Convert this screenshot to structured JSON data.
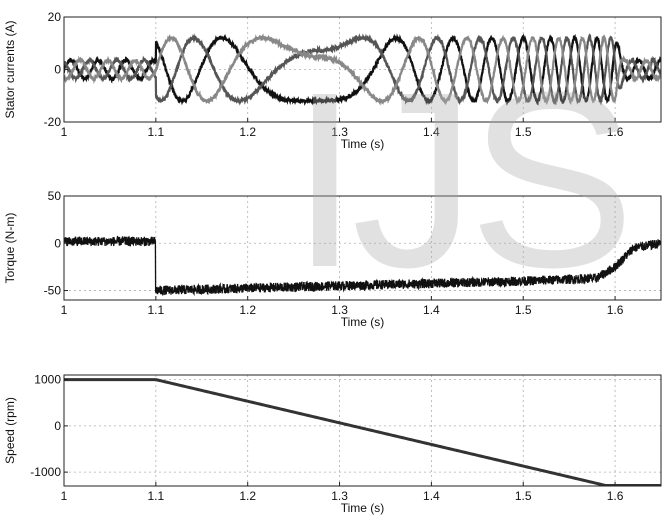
{
  "watermark": "IJS",
  "chart_data": [
    {
      "type": "line",
      "title": "",
      "xlabel": "Time (s)",
      "ylabel": "Stator currents (A)",
      "xlim": [
        1.0,
        1.65
      ],
      "ylim": [
        -20,
        20
      ],
      "xticks": [
        "1",
        "1.1",
        "1.2",
        "1.3",
        "1.4",
        "1.5",
        "1.6"
      ],
      "xtick_values": [
        1.0,
        1.1,
        1.2,
        1.3,
        1.4,
        1.5,
        1.6
      ],
      "yticks": [
        "-20",
        "0",
        "20"
      ],
      "ytick_values": [
        -20,
        0,
        20
      ],
      "grid": true,
      "series": [
        {
          "phase": 0,
          "color": "#111111"
        },
        {
          "phase": 2.094,
          "color": "#555555"
        },
        {
          "phase": 4.189,
          "color": "#888888"
        }
      ],
      "segments": [
        {
          "t_start": 1.0,
          "t_end": 1.1,
          "amplitude": 3.5,
          "freq_hz": 33.3
        },
        {
          "t_start": 1.1,
          "t_end": 1.6,
          "amplitude": 12,
          "freq_hz_start": 16,
          "freq_hz_at_1.28": 0,
          "freq_hz_end": 46
        },
        {
          "t_start": 1.6,
          "t_end": 1.65,
          "amplitude": 3.5,
          "freq_hz": 43
        }
      ]
    },
    {
      "type": "line",
      "title": "",
      "xlabel": "Time (s)",
      "ylabel": "Torque (N-m)",
      "xlim": [
        1.0,
        1.65
      ],
      "ylim": [
        -60,
        50
      ],
      "xticks": [
        "1",
        "1.1",
        "1.2",
        "1.3",
        "1.4",
        "1.5",
        "1.6"
      ],
      "xtick_values": [
        1.0,
        1.1,
        1.2,
        1.3,
        1.4,
        1.5,
        1.6
      ],
      "yticks": [
        "-50",
        "0",
        "50"
      ],
      "ytick_values": [
        -50,
        0,
        50
      ],
      "grid": true,
      "points": [
        [
          1.0,
          2
        ],
        [
          1.1,
          2
        ],
        [
          1.1,
          -50
        ],
        [
          1.3,
          -45
        ],
        [
          1.5,
          -40
        ],
        [
          1.58,
          -37
        ],
        [
          1.6,
          -25
        ],
        [
          1.62,
          -5
        ],
        [
          1.65,
          0
        ]
      ],
      "color": "#111111"
    },
    {
      "type": "line",
      "title": "",
      "xlabel": "Time (s)",
      "ylabel": "Speed (rpm)",
      "xlim": [
        1.0,
        1.65
      ],
      "ylim": [
        -1300,
        1100
      ],
      "xticks": [
        "1",
        "1.1",
        "1.2",
        "1.3",
        "1.4",
        "1.5",
        "1.6"
      ],
      "xtick_values": [
        1.0,
        1.1,
        1.2,
        1.3,
        1.4,
        1.5,
        1.6
      ],
      "yticks": [
        "-1000",
        "0",
        "1000"
      ],
      "ytick_values": [
        -1000,
        0,
        1000
      ],
      "grid": true,
      "points": [
        [
          1.0,
          1000
        ],
        [
          1.1,
          1000
        ],
        [
          1.59,
          -1290
        ],
        [
          1.65,
          -1290
        ]
      ],
      "color": "#333333"
    }
  ]
}
